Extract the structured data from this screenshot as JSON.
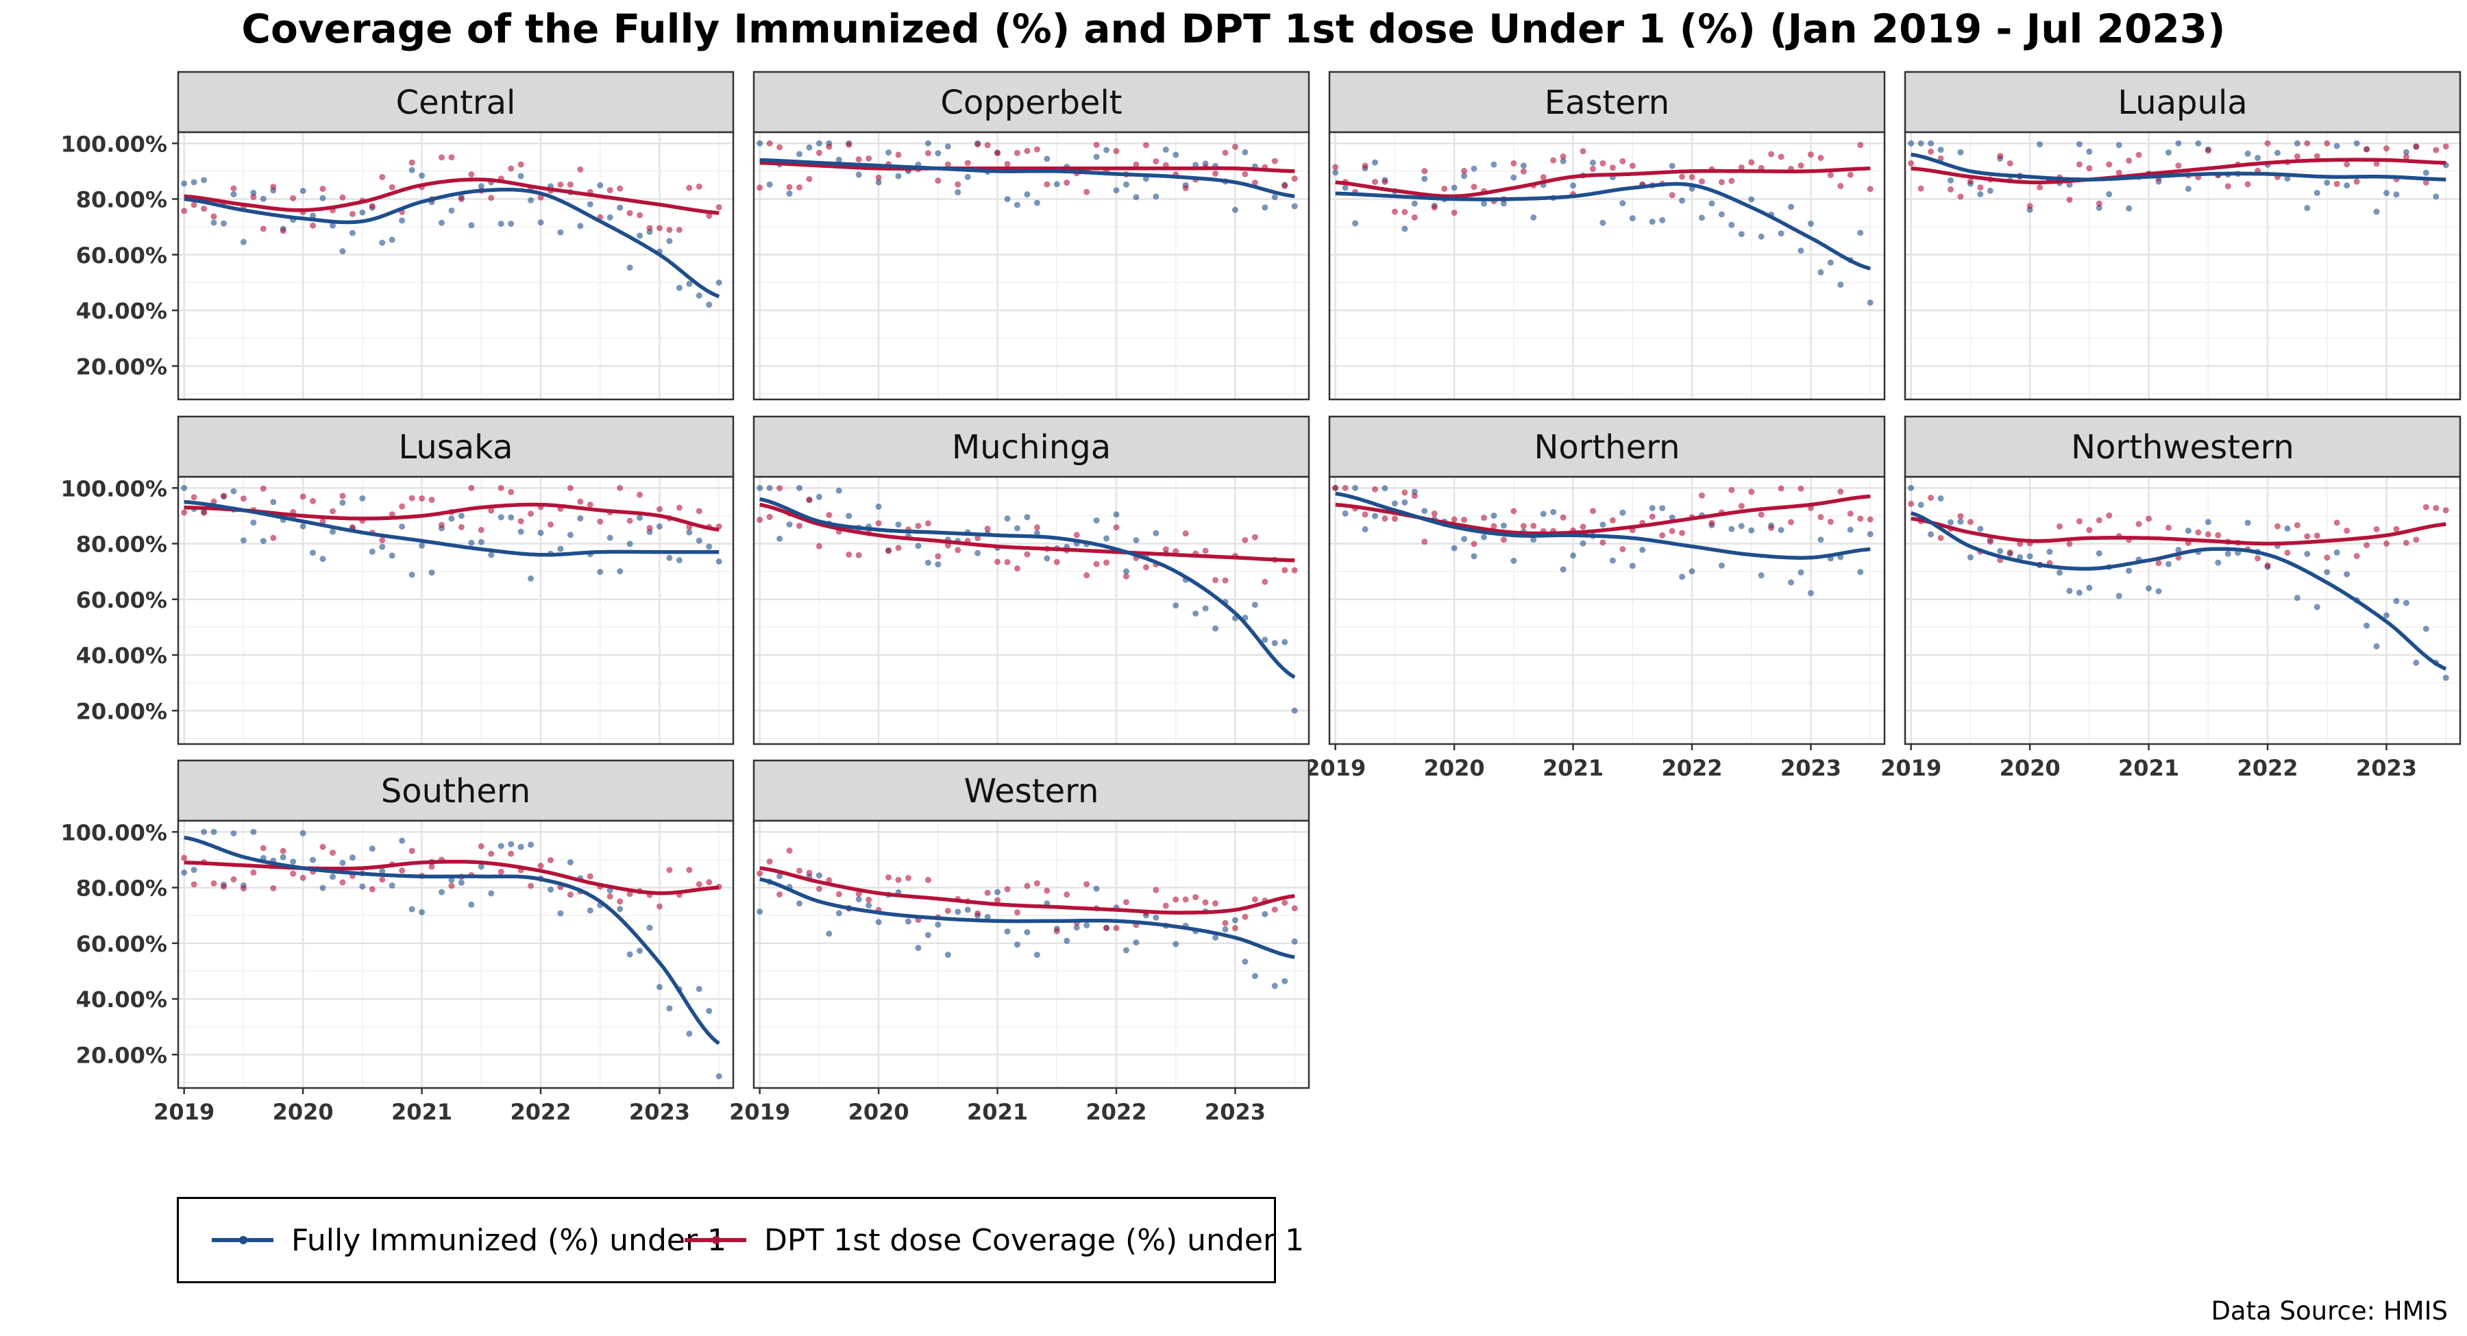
{
  "title": "Coverage of the Fully Immunized (%) and DPT 1st dose Under 1 (%) (Jan 2019 - Jul 2023)",
  "source": "Data Source: HMIS",
  "colors": {
    "fully": "#1F4E8C",
    "dpt": "#B5123A"
  },
  "legend": [
    {
      "label": "Fully Immunized (%) under 1",
      "key": "fully"
    },
    {
      "label": "DPT 1st dose Coverage (%) under 1",
      "key": "dpt"
    }
  ],
  "chart_data": {
    "type": "scatter",
    "facet_grid": "3 rows x 4 columns, panels filled row-wise",
    "x_ticks": [
      "2019",
      "2020",
      "2021",
      "2022",
      "2023"
    ],
    "y_ticks": [
      "20.00%",
      "40.00%",
      "60.00%",
      "80.00%",
      "100.00%"
    ],
    "xlim": [
      2018.95,
      2023.62
    ],
    "ylim": [
      8,
      104
    ],
    "grid": true,
    "legend_position": "bottom-left",
    "series_names": [
      "Fully Immunized (%) under 1",
      "DPT 1st dose Coverage (%) under 1"
    ],
    "smooth_x": [
      2019.0,
      2019.5,
      2020.0,
      2020.5,
      2021.0,
      2021.5,
      2022.0,
      2022.5,
      2023.0,
      2023.5
    ],
    "panels": [
      {
        "name": "Central",
        "fully_smooth": [
          80,
          76,
          73,
          72,
          79,
          83,
          82,
          72,
          60,
          45
        ],
        "dpt_smooth": [
          81,
          78,
          76,
          79,
          85,
          87,
          84,
          81,
          78,
          75
        ]
      },
      {
        "name": "Copperbelt",
        "fully_smooth": [
          94,
          93,
          92,
          91,
          90,
          90,
          89,
          88,
          86,
          81
        ],
        "dpt_smooth": [
          93,
          92,
          91,
          91,
          91,
          91,
          91,
          91,
          91,
          90
        ]
      },
      {
        "name": "Eastern",
        "fully_smooth": [
          82,
          81,
          80,
          80,
          81,
          84,
          85,
          77,
          66,
          55
        ],
        "dpt_smooth": [
          86,
          83,
          81,
          84,
          88,
          89,
          90,
          90,
          90,
          91
        ]
      },
      {
        "name": "Luapula",
        "fully_smooth": [
          96,
          90,
          88,
          87,
          88,
          89,
          89,
          88,
          88,
          87
        ],
        "dpt_smooth": [
          91,
          88,
          86,
          87,
          89,
          91,
          93,
          94,
          94,
          93
        ]
      },
      {
        "name": "Lusaka",
        "fully_smooth": [
          95,
          92,
          88,
          84,
          81,
          78,
          76,
          77,
          77,
          77
        ],
        "dpt_smooth": [
          93,
          92,
          90,
          89,
          90,
          93,
          94,
          92,
          90,
          85
        ]
      },
      {
        "name": "Muchinga",
        "fully_smooth": [
          96,
          88,
          85,
          84,
          83,
          82,
          78,
          70,
          55,
          32
        ],
        "dpt_smooth": [
          94,
          87,
          83,
          81,
          79,
          78,
          77,
          76,
          75,
          74
        ]
      },
      {
        "name": "Northern",
        "fully_smooth": [
          98,
          92,
          86,
          83,
          83,
          82,
          79,
          76,
          75,
          78
        ],
        "dpt_smooth": [
          94,
          91,
          87,
          84,
          84,
          86,
          89,
          92,
          94,
          97
        ]
      },
      {
        "name": "Northwestern",
        "fully_smooth": [
          91,
          79,
          73,
          71,
          74,
          78,
          76,
          66,
          52,
          35
        ],
        "dpt_smooth": [
          89,
          84,
          81,
          82,
          82,
          81,
          80,
          81,
          83,
          87
        ]
      },
      {
        "name": "Southern",
        "fully_smooth": [
          98,
          91,
          87,
          85,
          84,
          84,
          83,
          75,
          53,
          24
        ],
        "dpt_smooth": [
          89,
          88,
          87,
          87,
          89,
          89,
          86,
          81,
          78,
          80
        ]
      },
      {
        "name": "Western",
        "fully_smooth": [
          83,
          75,
          71,
          69,
          68,
          68,
          68,
          66,
          62,
          55
        ],
        "dpt_smooth": [
          87,
          82,
          78,
          76,
          74,
          73,
          72,
          71,
          72,
          77
        ]
      }
    ]
  }
}
